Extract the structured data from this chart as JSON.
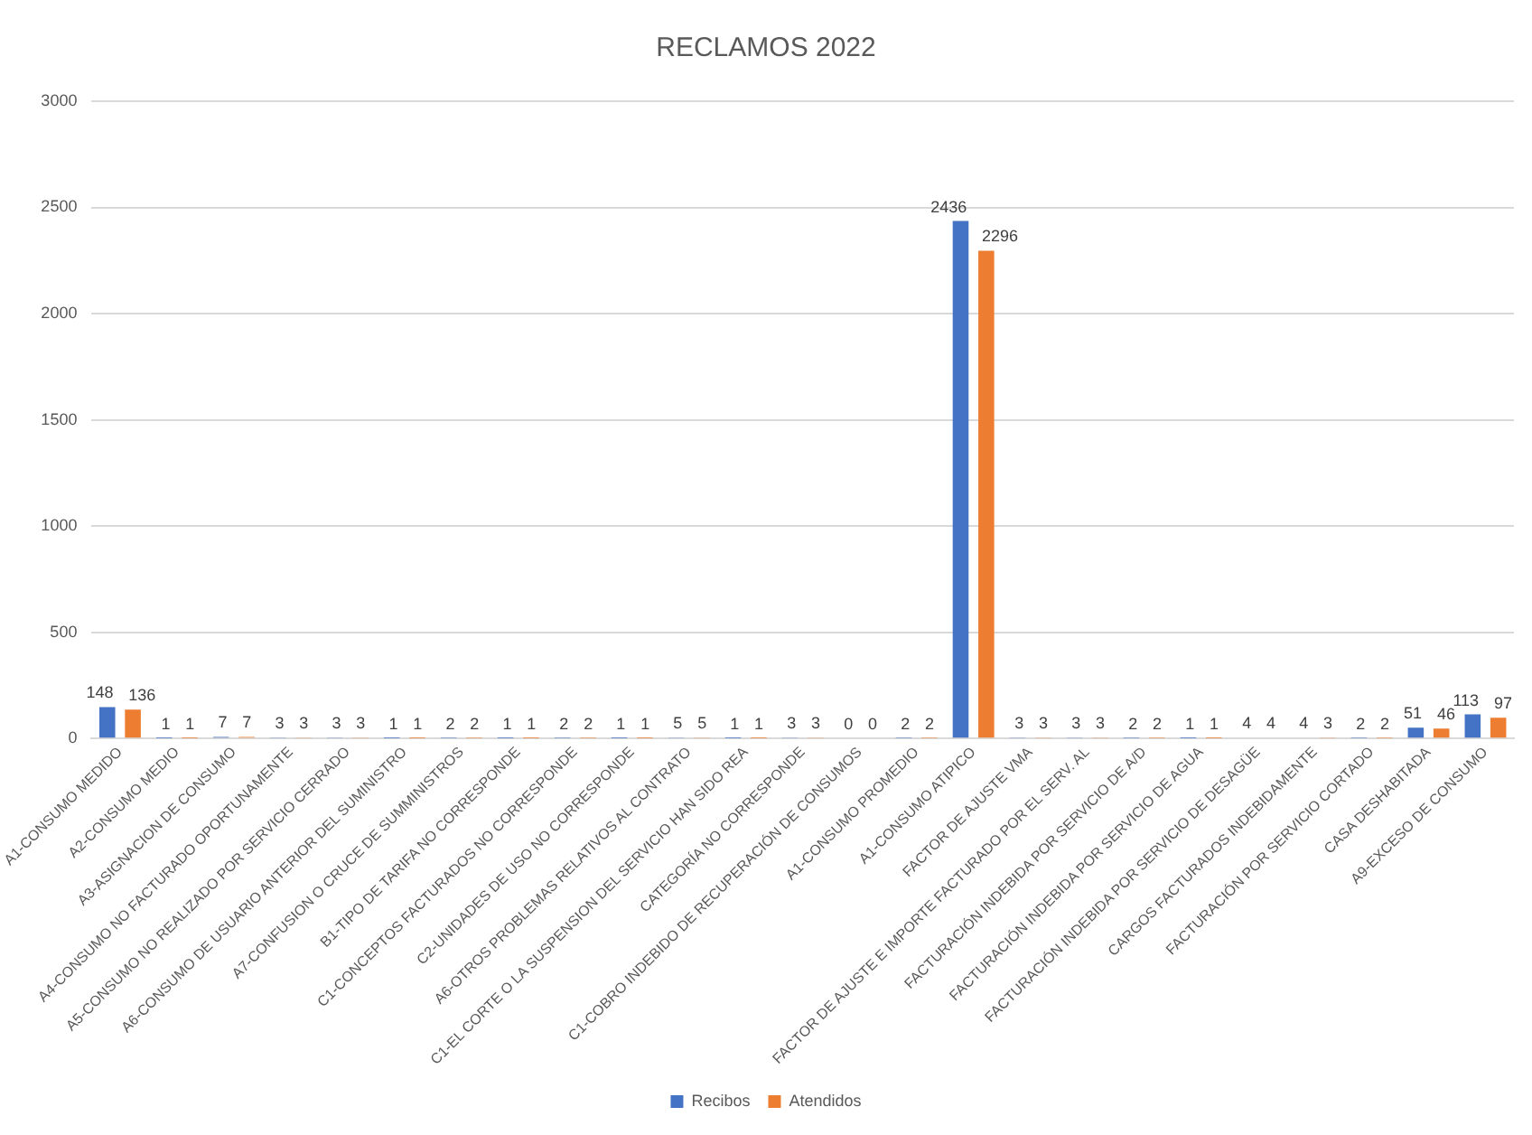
{
  "chart_data": {
    "type": "bar",
    "title": "RECLAMOS 2022",
    "categories": [
      "A1-CONSUMO MEDIDO",
      "A2-CONSUMO MEDIO",
      "A3-ASIGNACION DE CONSUMO",
      "A4-CONSUMO NO FACTURADO OPORTUNAMENTE",
      "A5-CONSUMO NO REALIZADO POR SERVICIO CERRADO",
      "A6-CONSUMO DE USUARIO ANTERIOR DEL SUMINISTRO",
      "A7-CONFUSION O CRUCE DE SUMMINISTROS",
      "B1-TIPO DE TARIFA NO CORRESPONDE",
      "C1-CONCEPTOS FACTURADOS NO CORRESPONDE",
      "C2-UNIDADES DE USO NO CORRESPONDE",
      "A6-OTROS PROBLEMAS RELATIVOS AL CONTRATO",
      "C1-EL CORTE O LA SUSPENSION DEL SERVICIO HAN SIDO REA",
      "CATEGORÍA NO CORRESPONDE",
      "C1-COBRO INDEBIDO DE RECUPERACIÓN DE CONSUMOS",
      "A1-CONSUMO PROMEDIO",
      "A1-CONSUMO ATIPICO",
      "FACTOR DE AJUSTE VMA",
      "FACTOR DE AJUSTE E IMPORTE FACTURADO POR EL SERV. AL",
      "FACTURACIÓN INDEBIDA POR SERVICIO DE A/D",
      "FACTURACIÓN INDEBIDA POR SERVICIO DE AGUA",
      "FACTURACIÓN INDEBIDA POR SERVICIO DE DESAGÜE",
      "CARGOS FACTURADOS INDEBIDAMENTE",
      "FACTURACIÓN POR SERVICIO CORTADO",
      "CASA DESHABITADA",
      "A9-EXCESO DE CONSUMO"
    ],
    "series": [
      {
        "name": "Recibos",
        "color": "#4472c4",
        "values": [
          148,
          1,
          7,
          3,
          3,
          1,
          2,
          1,
          2,
          1,
          5,
          1,
          3,
          0,
          2,
          2436,
          3,
          3,
          2,
          1,
          4,
          4,
          2,
          51,
          113
        ]
      },
      {
        "name": "Atendidos",
        "color": "#ed7d31",
        "values": [
          136,
          1,
          7,
          3,
          3,
          1,
          2,
          1,
          2,
          1,
          5,
          1,
          3,
          0,
          2,
          2296,
          3,
          3,
          2,
          1,
          4,
          3,
          2,
          46,
          97
        ]
      }
    ],
    "ylim": [
      0,
      3000
    ],
    "yticks": [
      0,
      500,
      1000,
      1500,
      2000,
      2500,
      3000
    ],
    "grid": "y",
    "legend": "bottom",
    "data_labels": true
  }
}
